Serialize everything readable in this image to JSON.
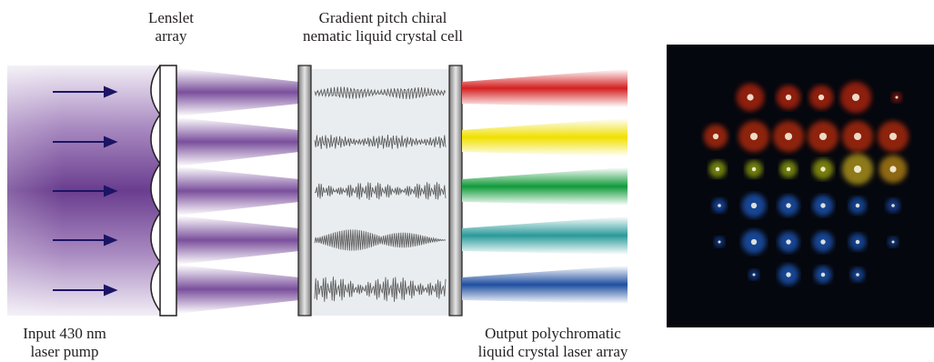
{
  "labels": {
    "lenslet_line1": "Lenslet",
    "lenslet_line2": "array",
    "cell_line1": "Gradient pitch chiral",
    "cell_line2": "nematic liquid crystal cell",
    "input_line1": "Input 430 nm",
    "input_line2": "laser pump",
    "output_line1": "Output polychromatic",
    "output_line2": "liquid crystal laser array"
  },
  "colors": {
    "pump": "#6a3d8f",
    "arrow": "#1c1464",
    "output_beams": [
      "#d42020",
      "#f0e000",
      "#119a3a",
      "#2a9a9a",
      "#1f4ea0"
    ],
    "photo_background": "#05070e"
  },
  "photo_spots": [
    {
      "row": 0,
      "colors": [
        "#ff3010",
        "#ff3010",
        "#ff3010",
        "#ff3010",
        "#cc2010"
      ]
    },
    {
      "row": 1,
      "colors": [
        "#ff3a10",
        "#ff3a10",
        "#ff3a10",
        "#ff3a10",
        "#ff3a10",
        "#ff3a10"
      ]
    },
    {
      "row": 2,
      "colors": [
        "#c8e010",
        "#c8e010",
        "#c8e010",
        "#d8e010",
        "#ffd820",
        "#ffb818"
      ]
    },
    {
      "row": 3,
      "colors": [
        "#2070ff",
        "#2878ff",
        "#2878ff",
        "#2878ff",
        "#2070f0",
        "#2060e0"
      ]
    },
    {
      "row": 4,
      "colors": [
        "#1a60e0",
        "#2878ff",
        "#2878ff",
        "#2878ff",
        "#2070f0",
        "#1a60d8"
      ]
    },
    {
      "row": 5,
      "colors": [
        "#1a60e0",
        "#2878ff",
        "#2878ff",
        "#2070f0"
      ]
    }
  ]
}
